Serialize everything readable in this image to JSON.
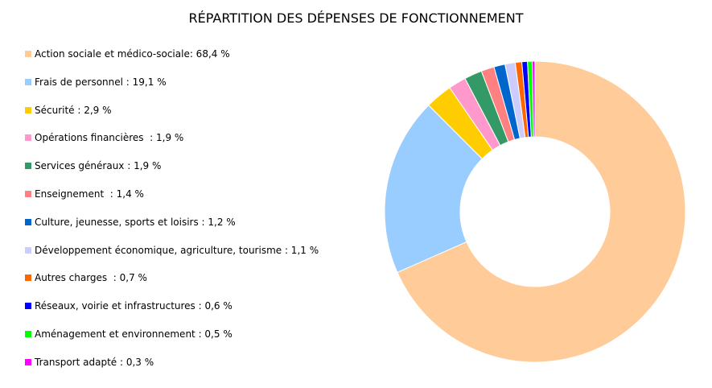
{
  "chart_data": {
    "type": "pie",
    "title": "RÉPARTITION DES DÉPENSES DE FONCTIONNEMENT",
    "legend_position": "left",
    "hole": true,
    "slices": [
      {
        "label": "Action sociale et médico-sociale: 68,4 %",
        "value": 68.4,
        "color": "#FFCC99"
      },
      {
        "label": "Frais de personnel : 19,1 %",
        "value": 19.1,
        "color": "#99CCFF"
      },
      {
        "label": "Sécurité : 2,9 %",
        "value": 2.9,
        "color": "#FFCC00"
      },
      {
        "label": "Opérations financières  : 1,9 %",
        "value": 1.9,
        "color": "#FF99CC"
      },
      {
        "label": "Services généraux : 1,9 %",
        "value": 1.9,
        "color": "#339966"
      },
      {
        "label": "Enseignement  : 1,4 %",
        "value": 1.4,
        "color": "#FF8080"
      },
      {
        "label": "Culture, jeunesse, sports et loisirs : 1,2 %",
        "value": 1.2,
        "color": "#0066CC"
      },
      {
        "label": "Développement économique, agriculture, tourisme : 1,1 %",
        "value": 1.1,
        "color": "#CCCCFF"
      },
      {
        "label": "Autres charges  : 0,7 %",
        "value": 0.7,
        "color": "#FF6600"
      },
      {
        "label": "Réseaux, voirie et infrastructures : 0,6 %",
        "value": 0.6,
        "color": "#0000FF"
      },
      {
        "label": "Aménagement et environnement : 0,5 %",
        "value": 0.5,
        "color": "#00FF00"
      },
      {
        "label": "Transport adapté : 0,3 %",
        "value": 0.3,
        "color": "#FF00FF"
      }
    ]
  }
}
